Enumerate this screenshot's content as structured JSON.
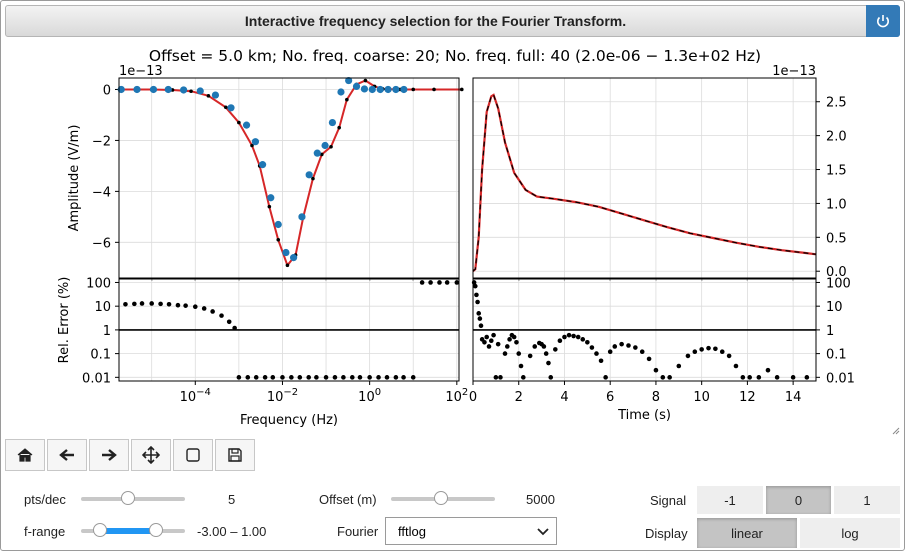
{
  "title": "Interactive frequency selection for the Fourier Transform.",
  "suptitle": "Offset = 5.0 km;    No. freq. coarse: 20;    No. freq. full: 40  (2.0e-06 − 1.3e+02 Hz)",
  "colors": {
    "red": "#d62728",
    "blue": "#1f77b4",
    "accent": "#337ab7",
    "fill": "#2196f3"
  },
  "chart_data": [
    {
      "type": "line",
      "panel": "frequency-amplitude",
      "ylabel": "Amplitude (V/m)",
      "offset_text": "1e−13",
      "x_scale": "log",
      "ylim": [
        -7.4,
        0.45
      ],
      "yticks": [
        "0",
        "−2",
        "−4",
        "−6"
      ],
      "series": [
        {
          "style": "red-line",
          "x": [
            2e-06,
            1e-05,
            3e-05,
            8e-05,
            0.0002,
            0.0005,
            0.001,
            0.002,
            0.003,
            0.005,
            0.008,
            0.013,
            0.02,
            0.03,
            0.05,
            0.08,
            0.13,
            0.2,
            0.3,
            0.5,
            0.8,
            1.3,
            2,
            5,
            10,
            30,
            130
          ],
          "y": [
            0,
            0,
            -0.02,
            -0.07,
            -0.25,
            -0.7,
            -1.3,
            -2.2,
            -3.0,
            -4.6,
            -5.9,
            -6.9,
            -6.5,
            -5.0,
            -3.5,
            -2.55,
            -2.25,
            -1.5,
            -0.4,
            0.2,
            0.35,
            0.12,
            0.02,
            0,
            0,
            0,
            0
          ]
        },
        {
          "style": "blue-dots",
          "x": [
            2e-06,
            4.6e-06,
            1.1e-05,
            2.4e-05,
            5.4e-05,
            0.00013,
            0.00029,
            0.00066,
            0.0015,
            0.0024,
            0.0035,
            0.0054,
            0.008,
            0.012,
            0.018,
            0.028,
            0.041,
            0.063,
            0.095,
            0.14,
            0.22,
            0.33,
            0.5,
            0.76,
            1.15,
            1.75,
            2.65,
            4.0,
            6.1
          ],
          "y": [
            0,
            0,
            0,
            0,
            -0.02,
            -0.06,
            -0.22,
            -0.72,
            -1.4,
            -2.05,
            -2.95,
            -4.25,
            -5.3,
            -6.4,
            -6.6,
            -5.0,
            -3.35,
            -2.5,
            -2.2,
            -1.3,
            -0.1,
            0.35,
            0.12,
            0.02,
            0,
            0,
            0,
            0,
            0
          ]
        }
      ]
    },
    {
      "type": "line",
      "panel": "time-signal",
      "offset_text": "1e−13",
      "xlim": [
        0,
        15
      ],
      "ylim": [
        -0.1,
        2.85
      ],
      "yticks": [
        "0.0",
        "0.5",
        "1.0",
        "1.5",
        "2.0",
        "2.5"
      ],
      "series": [
        {
          "style": "red-line-black-dashed",
          "x": [
            0,
            0.1,
            0.25,
            0.4,
            0.6,
            0.8,
            0.9,
            1.1,
            1.4,
            1.8,
            2.3,
            2.8,
            3.5,
            4.5,
            5.5,
            6.5,
            7.5,
            8.5,
            9.5,
            10.5,
            11.5,
            12.5,
            13.5,
            14.5,
            15
          ],
          "y": [
            0,
            0.03,
            0.5,
            1.5,
            2.35,
            2.58,
            2.6,
            2.4,
            1.9,
            1.45,
            1.2,
            1.1,
            1.07,
            1.02,
            0.95,
            0.85,
            0.75,
            0.65,
            0.56,
            0.49,
            0.42,
            0.36,
            0.31,
            0.27,
            0.25
          ]
        }
      ]
    },
    {
      "type": "scatter",
      "panel": "frequency-relative-error",
      "ylabel": "Rel. Error (%)",
      "xlabel": "Frequency (Hz)",
      "x_scale": "log",
      "y_scale": "log",
      "ylim": [
        0.007,
        140
      ],
      "xticks": [
        {
          "exp": "−4",
          "v": 0.0001
        },
        {
          "exp": "−2",
          "v": 0.01
        },
        {
          "exp": "0",
          "v": 1
        },
        {
          "exp": "2",
          "v": 100
        }
      ],
      "yticks": [
        "100",
        "10",
        "1",
        "0.1",
        "0.01"
      ],
      "reference_line": 1,
      "points": {
        "x": [
          2.5e-06,
          4e-06,
          6e-06,
          1e-05,
          1.6e-05,
          2.5e-05,
          4e-05,
          6e-05,
          0.0001,
          0.00016,
          0.00025,
          0.0004,
          0.0006,
          0.0008,
          0.001,
          0.0016,
          0.0025,
          0.004,
          0.006,
          0.01,
          0.016,
          0.025,
          0.04,
          0.06,
          0.1,
          0.16,
          0.25,
          0.4,
          0.6,
          1,
          1.6,
          2.5,
          4,
          6,
          10,
          16,
          25,
          40,
          60,
          100
        ],
        "y": [
          12,
          12.5,
          13,
          13,
          12.5,
          12,
          11,
          10.5,
          9.5,
          8,
          6,
          4,
          2.2,
          1.2,
          0.01,
          0.01,
          0.01,
          0.01,
          0.01,
          0.01,
          0.01,
          0.01,
          0.01,
          0.01,
          0.01,
          0.01,
          0.01,
          0.01,
          0.01,
          0.01,
          0.01,
          0.01,
          0.01,
          0.01,
          0.01,
          100,
          100,
          100,
          100,
          100
        ]
      }
    },
    {
      "type": "scatter",
      "panel": "time-relative-error",
      "xlabel": "Time (s)",
      "y_scale": "log",
      "xlim": [
        0,
        15
      ],
      "ylim": [
        0.007,
        140
      ],
      "xticks": [
        "0",
        "2",
        "4",
        "6",
        "8",
        "10",
        "12",
        "14"
      ],
      "yticks": [
        "100",
        "10",
        "1",
        "0.1",
        "0.01"
      ],
      "reference_line": 1,
      "points": {
        "x": [
          0.05,
          0.1,
          0.15,
          0.2,
          0.25,
          0.3,
          0.35,
          0.4,
          0.5,
          0.6,
          0.7,
          0.8,
          0.9,
          1.0,
          1.1,
          1.2,
          1.4,
          1.5,
          1.6,
          1.7,
          1.8,
          1.9,
          2.0,
          2.1,
          2.2,
          2.5,
          2.7,
          2.9,
          3.0,
          3.1,
          3.2,
          3.3,
          3.4,
          3.6,
          3.8,
          4.0,
          4.2,
          4.4,
          4.6,
          4.8,
          5.0,
          5.2,
          5.4,
          5.6,
          5.8,
          6.0,
          6.2,
          6.5,
          6.8,
          7.1,
          7.4,
          7.7,
          8.0,
          8.3,
          8.6,
          9.0,
          9.4,
          9.7,
          10.0,
          10.3,
          10.6,
          10.9,
          11.2,
          11.5,
          11.8,
          12.1,
          12.5,
          12.9,
          13.3,
          14.0,
          14.6
        ],
        "y": [
          100,
          70,
          30,
          15,
          5,
          3,
          1.5,
          0.4,
          0.3,
          0.5,
          0.2,
          0.35,
          0.6,
          0.01,
          0.25,
          0.01,
          0.1,
          0.2,
          0.4,
          0.6,
          0.5,
          0.3,
          0.1,
          0.03,
          0.01,
          0.08,
          0.2,
          0.28,
          0.25,
          0.2,
          0.1,
          0.04,
          0.01,
          0.15,
          0.35,
          0.5,
          0.6,
          0.55,
          0.5,
          0.4,
          0.3,
          0.18,
          0.1,
          0.05,
          0.01,
          0.12,
          0.2,
          0.25,
          0.22,
          0.18,
          0.12,
          0.06,
          0.02,
          0.01,
          0.01,
          0.03,
          0.08,
          0.12,
          0.15,
          0.17,
          0.16,
          0.12,
          0.08,
          0.03,
          0.01,
          0.01,
          0.01,
          0.02,
          0.01,
          0.01,
          0.01
        ]
      }
    }
  ],
  "toolbar": {
    "buttons": [
      {
        "icon": "home-icon"
      },
      {
        "icon": "back-arrow-icon"
      },
      {
        "icon": "forward-arrow-icon"
      },
      {
        "icon": "pan-icon"
      },
      {
        "icon": "zoom-rect-icon"
      },
      {
        "icon": "save-icon"
      }
    ]
  },
  "controls": {
    "pts_dec": {
      "label": "pts/dec",
      "value": "5",
      "level": 0.45
    },
    "f_range": {
      "label": "f-range",
      "value": "-3.00 – 1.00",
      "low": 0.18,
      "high": 0.72
    },
    "offset": {
      "label": "Offset (m)",
      "value": "5000",
      "level": 0.48
    },
    "fourier": {
      "label": "Fourier",
      "selected": "fftlog"
    },
    "signal": {
      "label": "Signal",
      "options": [
        "-1",
        "0",
        "1"
      ],
      "selected": "0"
    },
    "display": {
      "label": "Display",
      "options": [
        "linear",
        "log"
      ],
      "selected": "linear"
    }
  }
}
